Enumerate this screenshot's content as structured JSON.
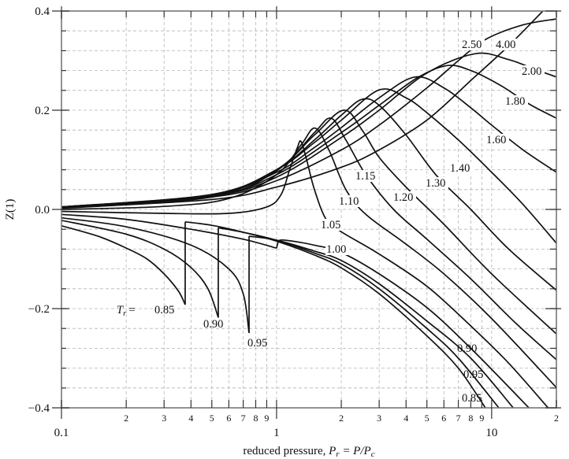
{
  "chart_data": {
    "type": "line",
    "title": "",
    "xlabel": "reduced pressure, P_r = P/P_c",
    "xlabel_parts": {
      "prefix": "reduced pressure, ",
      "P": "P",
      "r": "r",
      "eq": " = P/P",
      "c": "c"
    },
    "ylabel": "Z(1)",
    "ylabel_parts": {
      "main": "Z",
      "sup": "(1)"
    },
    "xscale": "log",
    "xlim": [
      0.1,
      20
    ],
    "ylim": [
      -0.4,
      0.4
    ],
    "grid": true,
    "y_ticks": [
      {
        "value": 0.4,
        "label": "0.4"
      },
      {
        "value": 0.2,
        "label": "0.2"
      },
      {
        "value": 0.0,
        "label": "0.0"
      },
      {
        "value": -0.2,
        "label": "−0.2"
      },
      {
        "value": -0.4,
        "label": "−0.4"
      }
    ],
    "x_major_ticks": [
      {
        "value": 0.1,
        "label": "0.1"
      },
      {
        "value": 1,
        "label": "1"
      },
      {
        "value": 10,
        "label": "10"
      }
    ],
    "x_minor_ticks": [
      {
        "value": 0.2,
        "label": "2"
      },
      {
        "value": 0.3,
        "label": "3"
      },
      {
        "value": 0.4,
        "label": "4"
      },
      {
        "value": 0.5,
        "label": "5"
      },
      {
        "value": 0.6,
        "label": "6"
      },
      {
        "value": 0.7,
        "label": "7"
      },
      {
        "value": 0.8,
        "label": "8"
      },
      {
        "value": 0.9,
        "label": "9"
      },
      {
        "value": 2,
        "label": "2"
      },
      {
        "value": 3,
        "label": "3"
      },
      {
        "value": 4,
        "label": "4"
      },
      {
        "value": 5,
        "label": "5"
      },
      {
        "value": 6,
        "label": "6"
      },
      {
        "value": 7,
        "label": "7"
      },
      {
        "value": 8,
        "label": "8"
      },
      {
        "value": 9,
        "label": "9"
      },
      {
        "value": 20,
        "label": "2"
      }
    ],
    "series": [
      {
        "name": "Tr=0.85",
        "label": "0.85",
        "segments": [
          [
            [
              0.1,
              -0.033
            ],
            [
              0.15,
              -0.055
            ],
            [
              0.2,
              -0.078
            ],
            [
              0.25,
              -0.1
            ],
            [
              0.3,
              -0.13
            ],
            [
              0.35,
              -0.165
            ],
            [
              0.376,
              -0.192
            ]
          ],
          [
            [
              0.376,
              -0.025
            ],
            [
              0.5,
              -0.032
            ],
            [
              0.7,
              -0.046
            ],
            [
              1,
              -0.064
            ],
            [
              1.5,
              -0.092
            ],
            [
              2,
              -0.118
            ],
            [
              3,
              -0.17
            ],
            [
              5,
              -0.255
            ],
            [
              7,
              -0.32
            ],
            [
              9.35,
              -0.4
            ]
          ]
        ]
      },
      {
        "name": "Tr=0.90",
        "label": "0.90",
        "segments": [
          [
            [
              0.1,
              -0.022
            ],
            [
              0.2,
              -0.05
            ],
            [
              0.3,
              -0.08
            ],
            [
              0.4,
              -0.117
            ],
            [
              0.48,
              -0.16
            ],
            [
              0.536,
              -0.218
            ]
          ],
          [
            [
              0.536,
              -0.037
            ],
            [
              0.7,
              -0.046
            ],
            [
              1,
              -0.062
            ],
            [
              1.5,
              -0.088
            ],
            [
              2,
              -0.11
            ],
            [
              3,
              -0.16
            ],
            [
              5,
              -0.24
            ],
            [
              7,
              -0.3
            ],
            [
              10.8,
              -0.4
            ]
          ]
        ]
      },
      {
        "name": "Tr=0.95",
        "label": "0.95",
        "segments": [
          [
            [
              0.1,
              -0.017
            ],
            [
              0.2,
              -0.035
            ],
            [
              0.4,
              -0.072
            ],
            [
              0.6,
              -0.12
            ],
            [
              0.7,
              -0.17
            ],
            [
              0.745,
              -0.249
            ]
          ],
          [
            [
              0.745,
              -0.054
            ],
            [
              1,
              -0.062
            ],
            [
              1.5,
              -0.084
            ],
            [
              2,
              -0.103
            ],
            [
              3,
              -0.15
            ],
            [
              5,
              -0.225
            ],
            [
              8,
              -0.3
            ],
            [
              12.6,
              -0.4
            ]
          ]
        ]
      },
      {
        "name": "Tr=1.00",
        "label": "1.00",
        "segments": [
          [
            [
              0.1,
              -0.01
            ],
            [
              0.2,
              -0.02
            ],
            [
              0.4,
              -0.04
            ],
            [
              0.7,
              -0.06
            ],
            [
              1.0,
              -0.078
            ]
          ],
          [
            [
              1.02,
              -0.063
            ],
            [
              1.1,
              -0.062
            ],
            [
              1.5,
              -0.072
            ],
            [
              2,
              -0.087
            ],
            [
              3,
              -0.13
            ],
            [
              5,
              -0.198
            ],
            [
              8,
              -0.28
            ],
            [
              14.9,
              -0.4
            ]
          ]
        ]
      },
      {
        "name": "Tr=1.05",
        "label": "1.05",
        "segments": [
          [
            [
              0.1,
              -0.004
            ],
            [
              0.3,
              -0.008
            ],
            [
              0.6,
              -0.008
            ],
            [
              0.9,
              0.005
            ],
            [
              1.05,
              0.03
            ],
            [
              1.15,
              0.08
            ],
            [
              1.25,
              0.125
            ],
            [
              1.3,
              0.137
            ],
            [
              1.38,
              0.1
            ],
            [
              1.5,
              0.04
            ],
            [
              1.7,
              -0.02
            ],
            [
              2,
              -0.045
            ],
            [
              3,
              -0.09
            ],
            [
              5,
              -0.155
            ],
            [
              8,
              -0.235
            ],
            [
              12,
              -0.31
            ],
            [
              18.3,
              -0.4
            ]
          ]
        ]
      },
      {
        "name": "Tr=1.10",
        "label": "1.10",
        "segments": [
          [
            [
              0.1,
              0.0
            ],
            [
              0.3,
              0.006
            ],
            [
              0.6,
              0.022
            ],
            [
              1,
              0.07
            ],
            [
              1.3,
              0.13
            ],
            [
              1.51,
              0.164
            ],
            [
              1.75,
              0.12
            ],
            [
              2.1,
              0.04
            ],
            [
              2.6,
              -0.01
            ],
            [
              4,
              -0.07
            ],
            [
              6,
              -0.13
            ],
            [
              10,
              -0.22
            ],
            [
              20,
              -0.359
            ]
          ]
        ]
      },
      {
        "name": "Tr=1.15",
        "label": "1.15",
        "segments": [
          [
            [
              0.1,
              0.002
            ],
            [
              0.5,
              0.025
            ],
            [
              1,
              0.078
            ],
            [
              1.5,
              0.155
            ],
            [
              1.79,
              0.184
            ],
            [
              2.1,
              0.14
            ],
            [
              2.6,
              0.07
            ],
            [
              3.5,
              0.0
            ],
            [
              5,
              -0.06
            ],
            [
              8,
              -0.14
            ],
            [
              13,
              -0.23
            ],
            [
              20,
              -0.303
            ]
          ]
        ]
      },
      {
        "name": "Tr=1.20",
        "label": "1.20",
        "segments": [
          [
            [
              0.1,
              0.003
            ],
            [
              0.5,
              0.028
            ],
            [
              1,
              0.08
            ],
            [
              1.5,
              0.15
            ],
            [
              2.05,
              0.2
            ],
            [
              2.5,
              0.16
            ],
            [
              3,
              0.105
            ],
            [
              4,
              0.045
            ],
            [
              6,
              -0.03
            ],
            [
              10,
              -0.13
            ],
            [
              20,
              -0.251
            ]
          ]
        ]
      },
      {
        "name": "Tr=1.30",
        "label": "1.30",
        "segments": [
          [
            [
              0.1,
              0.004
            ],
            [
              0.5,
              0.03
            ],
            [
              1,
              0.08
            ],
            [
              1.5,
              0.14
            ],
            [
              2,
              0.19
            ],
            [
              2.5,
              0.222
            ],
            [
              3,
              0.21
            ],
            [
              4,
              0.15
            ],
            [
              5.5,
              0.07
            ],
            [
              8,
              0.0
            ],
            [
              12,
              -0.08
            ],
            [
              20,
              -0.163
            ]
          ]
        ]
      },
      {
        "name": "Tr=1.40",
        "label": "1.40",
        "segments": [
          [
            [
              0.1,
              0.005
            ],
            [
              0.5,
              0.03
            ],
            [
              1,
              0.08
            ],
            [
              1.5,
              0.135
            ],
            [
              2,
              0.18
            ],
            [
              3,
              0.241
            ],
            [
              4,
              0.225
            ],
            [
              5,
              0.195
            ],
            [
              7,
              0.14
            ],
            [
              10,
              0.075
            ],
            [
              14,
              0.01
            ],
            [
              20,
              -0.068
            ]
          ]
        ]
      },
      {
        "name": "Tr=1.60",
        "label": "1.60",
        "segments": [
          [
            [
              0.1,
              0.005
            ],
            [
              0.5,
              0.03
            ],
            [
              1,
              0.075
            ],
            [
              1.5,
              0.125
            ],
            [
              2,
              0.165
            ],
            [
              3,
              0.225
            ],
            [
              4.4,
              0.267
            ],
            [
              6,
              0.245
            ],
            [
              8,
              0.205
            ],
            [
              10,
              0.17
            ],
            [
              14,
              0.12
            ],
            [
              20,
              0.075
            ]
          ]
        ]
      },
      {
        "name": "Tr=1.80",
        "label": "1.80",
        "segments": [
          [
            [
              0.1,
              0.005
            ],
            [
              0.5,
              0.028
            ],
            [
              1,
              0.07
            ],
            [
              2,
              0.155
            ],
            [
              3,
              0.21
            ],
            [
              4.5,
              0.265
            ],
            [
              6.2,
              0.29
            ],
            [
              8,
              0.28
            ],
            [
              11,
              0.25
            ],
            [
              15,
              0.212
            ],
            [
              20,
              0.184
            ]
          ]
        ]
      },
      {
        "name": "Tr=2.00",
        "label": "2.00",
        "segments": [
          [
            [
              0.1,
              0.005
            ],
            [
              0.5,
              0.027
            ],
            [
              1,
              0.065
            ],
            [
              2,
              0.145
            ],
            [
              3,
              0.2
            ],
            [
              5,
              0.275
            ],
            [
              8.4,
              0.314
            ],
            [
              12,
              0.302
            ],
            [
              16,
              0.282
            ],
            [
              20,
              0.267
            ]
          ]
        ]
      },
      {
        "name": "Tr=2.50",
        "label": "2.50",
        "segments": [
          [
            [
              0.1,
              0.004
            ],
            [
              0.5,
              0.025
            ],
            [
              1,
              0.058
            ],
            [
              2,
              0.12
            ],
            [
              3,
              0.17
            ],
            [
              5,
              0.245
            ],
            [
              7,
              0.3
            ],
            [
              9.4,
              0.343
            ],
            [
              14,
              0.372
            ],
            [
              20,
              0.384
            ]
          ]
        ]
      },
      {
        "name": "Tr=4.00",
        "label": "4.00",
        "segments": [
          [
            [
              0.1,
              0.003
            ],
            [
              0.5,
              0.02
            ],
            [
              1,
              0.045
            ],
            [
              2,
              0.085
            ],
            [
              3,
              0.12
            ],
            [
              5,
              0.18
            ],
            [
              8,
              0.26
            ],
            [
              12,
              0.33
            ],
            [
              17.3,
              0.4
            ]
          ]
        ]
      }
    ],
    "annotations": {
      "tr_prefix": "T",
      "tr_sub": "r",
      "tr_eq": "=",
      "low_labels": [
        "0.85",
        "0.90",
        "0.95"
      ],
      "high_p_labels": [
        "0.90",
        "0.95",
        "0.85"
      ]
    }
  }
}
